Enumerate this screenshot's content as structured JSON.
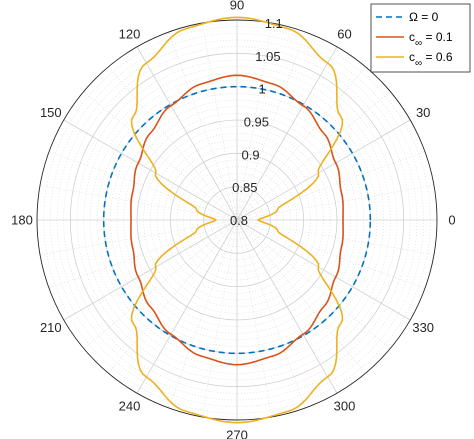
{
  "chart_data": {
    "type": "line",
    "coordinate_system": "polar",
    "title": "",
    "theta_unit": "degrees",
    "theta_ticks": [
      0,
      30,
      60,
      90,
      120,
      150,
      180,
      210,
      240,
      270,
      300,
      330
    ],
    "theta_tick_labels": [
      "0",
      "30",
      "60",
      "90",
      "120",
      "150",
      "180",
      "210",
      "240",
      "270",
      "300",
      "330"
    ],
    "rlim": [
      0.8,
      1.1
    ],
    "r_ticks": [
      0.8,
      0.85,
      0.9,
      0.95,
      1,
      1.05,
      1.1
    ],
    "r_tick_labels": [
      "0.8",
      "0.85",
      "0.9",
      "0.95",
      "1",
      "1.05",
      "1.1"
    ],
    "grid": true,
    "minor_grid": true,
    "legend_position": "top-right",
    "legend": [
      {
        "label": "Ω = 0",
        "color": "#0072BD",
        "dash": true
      },
      {
        "label_main": "c",
        "label_sub": "∞",
        "label_tail": " = 0.1",
        "color": "#D95319",
        "dash": false
      },
      {
        "label_main": "c",
        "label_sub": "∞",
        "label_tail": " = 0.6",
        "color": "#EDB120",
        "dash": false
      }
    ],
    "series": [
      {
        "color": "#0072BD",
        "theta": [
          0,
          15,
          30,
          45,
          60,
          75,
          90,
          105,
          120,
          135,
          150,
          165,
          180,
          195,
          210,
          225,
          240,
          255,
          270,
          285,
          300,
          315,
          330,
          345,
          360
        ],
        "r": [
          1,
          1,
          1,
          1,
          1,
          1,
          1,
          1,
          1,
          1,
          1,
          1,
          1,
          1,
          1,
          1,
          1,
          1,
          1,
          1,
          1,
          1,
          1,
          1,
          1
        ]
      },
      {
        "color": "#D95319",
        "theta": [
          0,
          15,
          30,
          45,
          60,
          75,
          90,
          105,
          120,
          135,
          150,
          165,
          180,
          195,
          210,
          225,
          240,
          255,
          270,
          285,
          300,
          315,
          330,
          345,
          360
        ],
        "r": [
          0.959,
          0.962,
          0.971,
          0.984,
          0.998,
          1.011,
          1.017,
          1.011,
          0.998,
          0.984,
          0.971,
          0.962,
          0.959,
          0.962,
          0.971,
          0.984,
          0.998,
          1.011,
          1.017,
          1.011,
          0.998,
          0.984,
          0.971,
          0.962,
          0.959
        ]
      },
      {
        "color": "#EDB120",
        "theta": [
          0,
          15,
          30,
          45,
          60,
          75,
          90,
          105,
          120,
          135,
          150,
          165,
          180,
          195,
          210,
          225,
          240,
          255,
          270,
          285,
          300,
          315,
          330,
          345,
          360
        ],
        "r": [
          0.832,
          0.863,
          0.941,
          1.02,
          1.072,
          1.097,
          1.104,
          1.097,
          1.072,
          1.02,
          0.941,
          0.863,
          0.832,
          0.863,
          0.941,
          1.02,
          1.072,
          1.097,
          1.104,
          1.097,
          1.072,
          1.02,
          0.941,
          0.863,
          0.832
        ]
      }
    ]
  }
}
